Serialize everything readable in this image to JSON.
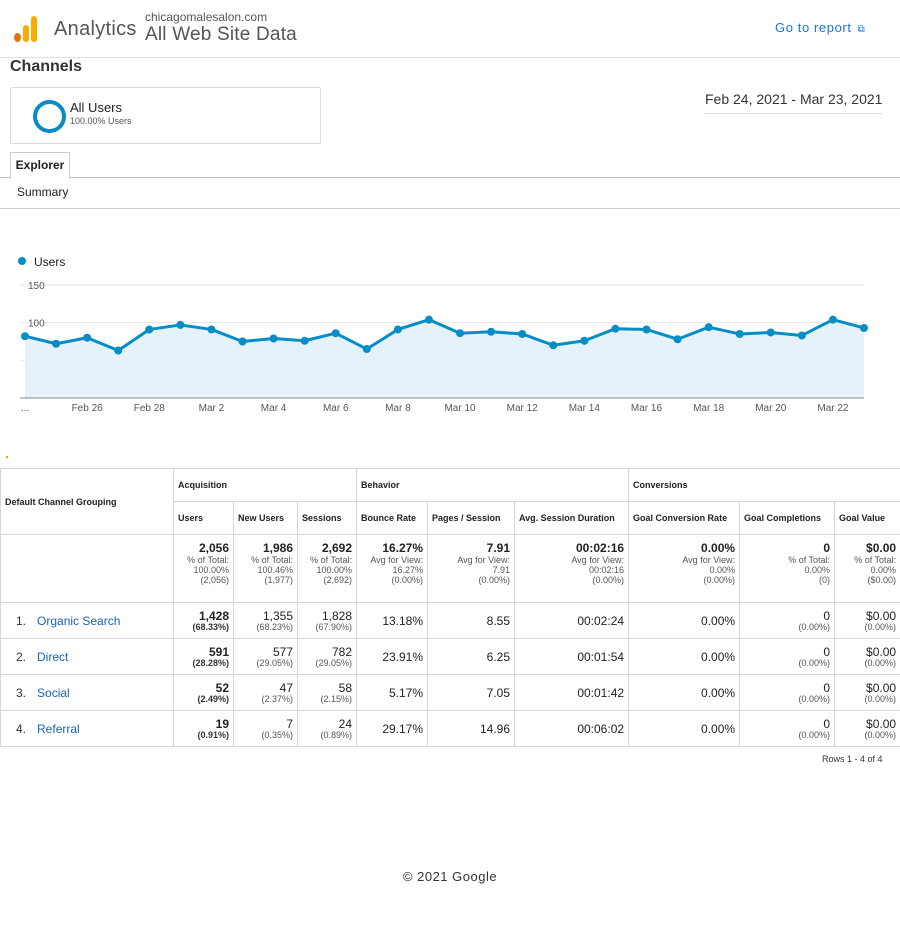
{
  "header": {
    "app_name": "Analytics",
    "site_url": "chicagomalesalon.com",
    "view_name": "All Web Site Data",
    "go_to_report": "Go to report",
    "external_icon": "external-link-icon"
  },
  "page": {
    "title": "Channels",
    "date_range": "Feb 24, 2021 - Mar 23, 2021",
    "tab": "Explorer",
    "subtab": "Summary"
  },
  "segment": {
    "name": "All Users",
    "pct": "100.00% Users"
  },
  "colors": {
    "accent": "#058dc7",
    "link": "#1a73e8",
    "area": "#e5f2f9"
  },
  "chart_data": {
    "type": "area",
    "series": [
      {
        "name": "Users",
        "values": [
          82,
          72,
          80,
          63,
          91,
          97,
          91,
          75,
          79,
          76,
          86,
          65,
          91,
          104,
          86,
          88,
          85,
          70,
          76,
          92,
          91,
          78,
          94,
          85,
          87,
          83,
          104,
          93
        ]
      }
    ],
    "x_labels": [
      "...",
      "Feb 26",
      "Feb 28",
      "Mar 2",
      "Mar 4",
      "Mar 6",
      "Mar 8",
      "Mar 10",
      "Mar 12",
      "Mar 14",
      "Mar 16",
      "Mar 18",
      "Mar 20",
      "Mar 22"
    ],
    "y_ticks": [
      "150",
      "100",
      "50"
    ],
    "ylim": [
      0,
      150
    ]
  },
  "table": {
    "dimension_header": "Default Channel Grouping",
    "groups": [
      "Acquisition",
      "Behavior",
      "Conversions"
    ],
    "columns": [
      "Users",
      "New Users",
      "Sessions",
      "Bounce Rate",
      "Pages / Session",
      "Avg. Session Duration",
      "Goal Conversion Rate",
      "Goal Completions",
      "Goal Value"
    ],
    "totals": [
      {
        "value": "2,056",
        "l1": "% of Total:",
        "l2": "100.00%",
        "l3": "(2,056)"
      },
      {
        "value": "1,986",
        "l1": "% of Total:",
        "l2": "100.46%",
        "l3": "(1,977)"
      },
      {
        "value": "2,692",
        "l1": "% of Total:",
        "l2": "100.00%",
        "l3": "(2,692)"
      },
      {
        "value": "16.27%",
        "l1": "Avg for View:",
        "l2": "16.27%",
        "l3": "(0.00%)"
      },
      {
        "value": "7.91",
        "l1": "Avg for View:",
        "l2": "7.91",
        "l3": "(0.00%)"
      },
      {
        "value": "00:02:16",
        "l1": "Avg for View:",
        "l2": "00:02:16",
        "l3": "(0.00%)"
      },
      {
        "value": "0.00%",
        "l1": "Avg for View:",
        "l2": "0.00%",
        "l3": "(0.00%)"
      },
      {
        "value": "0",
        "l1": "% of Total:",
        "l2": "0.00%",
        "l3": "(0)"
      },
      {
        "value": "$0.00",
        "l1": "% of Total:",
        "l2": "0.00%",
        "l3": "($0.00)"
      }
    ],
    "rows": [
      {
        "rank": "1.",
        "channel": "Organic Search",
        "users": "1,428",
        "users_pct": "(68.33%)",
        "new_users": "1,355",
        "new_users_pct": "(68.23%)",
        "sessions": "1,828",
        "sessions_pct": "(67.90%)",
        "bounce": "13.18%",
        "pages": "8.55",
        "duration": "00:02:24",
        "conv_rate": "0.00%",
        "completions": "0",
        "completions_pct": "(0.00%)",
        "goal_value": "$0.00",
        "goal_value_pct": "(0.00%)"
      },
      {
        "rank": "2.",
        "channel": "Direct",
        "users": "591",
        "users_pct": "(28.28%)",
        "new_users": "577",
        "new_users_pct": "(29.05%)",
        "sessions": "782",
        "sessions_pct": "(29.05%)",
        "bounce": "23.91%",
        "pages": "6.25",
        "duration": "00:01:54",
        "conv_rate": "0.00%",
        "completions": "0",
        "completions_pct": "(0.00%)",
        "goal_value": "$0.00",
        "goal_value_pct": "(0.00%)"
      },
      {
        "rank": "3.",
        "channel": "Social",
        "users": "52",
        "users_pct": "(2.49%)",
        "new_users": "47",
        "new_users_pct": "(2.37%)",
        "sessions": "58",
        "sessions_pct": "(2.15%)",
        "bounce": "5.17%",
        "pages": "7.05",
        "duration": "00:01:42",
        "conv_rate": "0.00%",
        "completions": "0",
        "completions_pct": "(0.00%)",
        "goal_value": "$0.00",
        "goal_value_pct": "(0.00%)"
      },
      {
        "rank": "4.",
        "channel": "Referral",
        "users": "19",
        "users_pct": "(0.91%)",
        "new_users": "7",
        "new_users_pct": "(0.35%)",
        "sessions": "24",
        "sessions_pct": "(0.89%)",
        "bounce": "29.17%",
        "pages": "14.96",
        "duration": "00:06:02",
        "conv_rate": "0.00%",
        "completions": "0",
        "completions_pct": "(0.00%)",
        "goal_value": "$0.00",
        "goal_value_pct": "(0.00%)"
      }
    ],
    "rows_info": "Rows 1 - 4 of 4"
  },
  "footer": "© 2021 Google"
}
